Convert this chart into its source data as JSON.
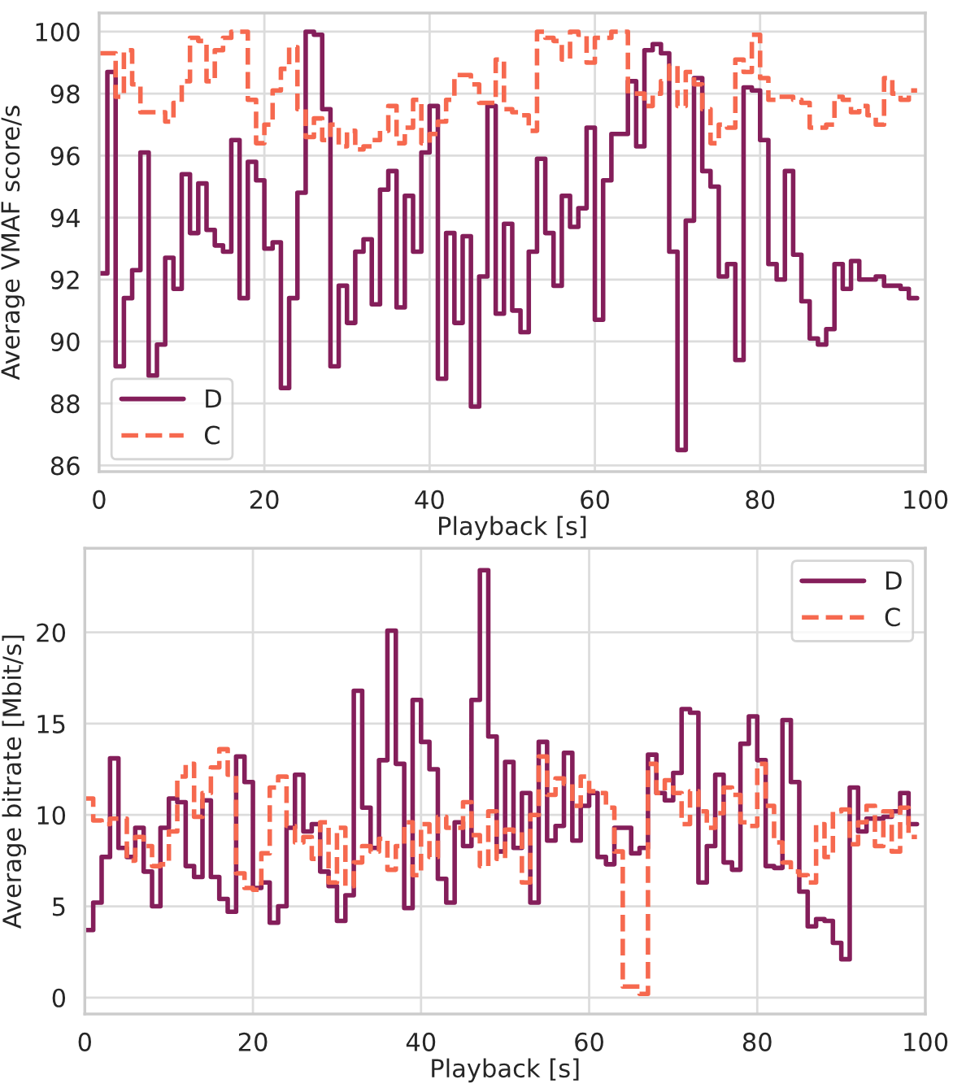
{
  "chart_data": [
    {
      "type": "step",
      "xlabel": "Playback [s]",
      "ylabel": "Average VMAF score/s",
      "xlim": [
        0,
        100
      ],
      "xticks": [
        0,
        20,
        40,
        60,
        80,
        100
      ],
      "ylim": [
        85.8,
        100.6
      ],
      "yticks": [
        86,
        88,
        90,
        92,
        94,
        96,
        98,
        100
      ],
      "grid": true,
      "legend": "bottom left",
      "x": [
        0,
        1,
        2,
        3,
        4,
        5,
        6,
        7,
        8,
        9,
        10,
        11,
        12,
        13,
        14,
        15,
        16,
        17,
        18,
        19,
        20,
        21,
        22,
        23,
        24,
        25,
        26,
        27,
        28,
        29,
        30,
        31,
        32,
        33,
        34,
        35,
        36,
        37,
        38,
        39,
        40,
        41,
        42,
        43,
        44,
        45,
        46,
        47,
        48,
        49,
        50,
        51,
        52,
        53,
        54,
        55,
        56,
        57,
        58,
        59,
        60,
        61,
        62,
        63,
        64,
        65,
        66,
        67,
        68,
        69,
        70,
        71,
        72,
        73,
        74,
        75,
        76,
        77,
        78,
        79,
        80,
        81,
        82,
        83,
        84,
        85,
        86,
        87,
        88,
        89,
        90,
        91,
        92,
        93,
        94,
        95,
        96,
        97,
        98,
        99
      ],
      "series": [
        {
          "name": "D",
          "color": "#841e5a",
          "line_style": "solid",
          "values": [
            92.2,
            98.7,
            89.2,
            91.4,
            92.3,
            96.1,
            88.9,
            89.9,
            92.7,
            91.7,
            95.4,
            93.5,
            95.1,
            93.6,
            93.1,
            92.9,
            96.5,
            91.4,
            95.8,
            95.2,
            93.0,
            93.2,
            88.5,
            91.4,
            94.8,
            100.0,
            99.9,
            97.5,
            89.2,
            91.8,
            90.6,
            92.9,
            93.3,
            91.2,
            94.9,
            95.5,
            91.1,
            94.7,
            92.9,
            96.1,
            97.6,
            88.8,
            93.5,
            90.6,
            93.4,
            87.9,
            92.1,
            97.6,
            90.9,
            93.8,
            91.0,
            90.3,
            92.9,
            95.9,
            93.5,
            91.8,
            94.7,
            93.7,
            94.3,
            96.9,
            90.7,
            95.2,
            96.7,
            96.7,
            98.4,
            96.3,
            99.4,
            99.6,
            99.3,
            92.9,
            86.5,
            93.9,
            98.5,
            95.5,
            95.0,
            92.1,
            92.5,
            89.4,
            98.2,
            98.1,
            96.5,
            92.5,
            92.0,
            95.5,
            92.8,
            91.3,
            90.1,
            89.9,
            90.4,
            92.5,
            91.7,
            92.6,
            92.0,
            92.0,
            92.1,
            91.8,
            91.8,
            91.7,
            91.4,
            91.4
          ]
        },
        {
          "name": "C",
          "color": "#f6694f",
          "line_style": "dashed",
          "values": [
            99.3,
            99.3,
            97.9,
            99.4,
            98.3,
            97.4,
            97.4,
            97.4,
            97.1,
            97.7,
            98.4,
            99.8,
            99.7,
            98.4,
            99.4,
            99.8,
            100.0,
            100.0,
            97.8,
            96.4,
            97.0,
            98.1,
            98.8,
            99.5,
            97.5,
            96.6,
            97.2,
            96.5,
            97.0,
            96.3,
            96.8,
            96.2,
            96.3,
            96.5,
            96.8,
            97.6,
            96.4,
            96.9,
            97.8,
            96.4,
            96.7,
            97.1,
            97.8,
            98.6,
            98.6,
            98.3,
            97.7,
            97.7,
            99.1,
            97.5,
            97.4,
            97.3,
            96.8,
            100.0,
            99.8,
            99.7,
            99.1,
            100.0,
            99.9,
            99.0,
            99.8,
            99.8,
            100.0,
            100.0,
            98.0,
            98.0,
            97.6,
            98.0,
            98.4,
            98.9,
            97.6,
            98.7,
            98.3,
            97.5,
            96.4,
            97.0,
            96.9,
            99.1,
            98.7,
            99.9,
            98.5,
            97.8,
            97.9,
            97.9,
            97.8,
            97.7,
            96.9,
            96.9,
            97.0,
            97.9,
            97.8,
            97.4,
            97.6,
            97.3,
            97.0,
            98.5,
            98.0,
            97.8,
            98.1,
            98.1
          ]
        }
      ]
    },
    {
      "type": "step",
      "xlabel": "Playback [s]",
      "ylabel": "Average bitrate [Mbit/s]",
      "xlim": [
        0,
        100
      ],
      "xticks": [
        0,
        20,
        40,
        60,
        80,
        100
      ],
      "ylim": [
        -0.9,
        24.6
      ],
      "yticks": [
        0,
        5,
        10,
        15,
        20
      ],
      "grid": true,
      "legend": "top right",
      "x": [
        0,
        1,
        2,
        3,
        4,
        5,
        6,
        7,
        8,
        9,
        10,
        11,
        12,
        13,
        14,
        15,
        16,
        17,
        18,
        19,
        20,
        21,
        22,
        23,
        24,
        25,
        26,
        27,
        28,
        29,
        30,
        31,
        32,
        33,
        34,
        35,
        36,
        37,
        38,
        39,
        40,
        41,
        42,
        43,
        44,
        45,
        46,
        47,
        48,
        49,
        50,
        51,
        52,
        53,
        54,
        55,
        56,
        57,
        58,
        59,
        60,
        61,
        62,
        63,
        64,
        65,
        66,
        67,
        68,
        69,
        70,
        71,
        72,
        73,
        74,
        75,
        76,
        77,
        78,
        79,
        80,
        81,
        82,
        83,
        84,
        85,
        86,
        87,
        88,
        89,
        90,
        91,
        92,
        93,
        94,
        95,
        96,
        97,
        98,
        99
      ],
      "series": [
        {
          "name": "D",
          "color": "#841e5a",
          "line_style": "solid",
          "values": [
            3.7,
            5.2,
            7.7,
            13.1,
            8.2,
            7.7,
            9.3,
            6.9,
            5.0,
            9.3,
            10.9,
            10.7,
            7.2,
            6.6,
            10.8,
            6.6,
            5.4,
            4.7,
            13.2,
            11.8,
            6.0,
            6.3,
            4.1,
            5.0,
            9.3,
            12.2,
            9.1,
            9.5,
            6.9,
            6.1,
            4.2,
            5.6,
            16.8,
            10.4,
            8.2,
            13.0,
            20.1,
            12.8,
            4.9,
            16.3,
            14.0,
            12.5,
            6.5,
            5.2,
            9.6,
            8.3,
            16.3,
            23.4,
            14.3,
            8.0,
            12.9,
            8.2,
            11.2,
            5.2,
            14.0,
            8.6,
            9.4,
            13.4,
            8.6,
            10.5,
            11.2,
            7.7,
            7.3,
            9.3,
            9.3,
            7.9,
            8.2,
            13.3,
            11.2,
            10.8,
            12.3,
            15.8,
            15.6,
            6.3,
            8.3,
            12.2,
            7.4,
            7.0,
            13.9,
            15.4,
            13.0,
            7.2,
            7.1,
            15.2,
            11.8,
            5.8,
            3.9,
            4.3,
            4.2,
            3.0,
            2.1,
            11.5,
            9.1,
            9.8,
            9.8,
            9.9,
            10.2,
            11.2,
            9.5,
            9.5
          ]
        },
        {
          "name": "C",
          "color": "#f6694f",
          "line_style": "dashed",
          "values": [
            10.9,
            9.7,
            9.5,
            9.8,
            9.8,
            7.5,
            8.8,
            8.3,
            7.2,
            7.3,
            9.1,
            12.1,
            12.8,
            9.9,
            11.2,
            12.6,
            13.6,
            12.2,
            6.8,
            6.0,
            5.9,
            7.9,
            11.5,
            12.1,
            9.4,
            8.5,
            8.8,
            7.6,
            9.6,
            6.3,
            9.3,
            6.1,
            7.4,
            8.3,
            8.0,
            8.7,
            7.0,
            8.3,
            9.6,
            6.7,
            9.5,
            7.7,
            9.9,
            9.3,
            9.3,
            10.7,
            8.9,
            7.2,
            10.2,
            7.6,
            9.2,
            9.1,
            6.3,
            10.0,
            13.2,
            11.1,
            12.0,
            11.7,
            10.5,
            12.1,
            11.3,
            11.2,
            10.4,
            8.0,
            0.6,
            0.6,
            0.2,
            12.8,
            11.2,
            11.9,
            11.2,
            9.5,
            11.3,
            10.2,
            9.3,
            10.1,
            11.5,
            11.1,
            9.6,
            9.4,
            12.8,
            10.5,
            8.5,
            7.4,
            6.9,
            6.7,
            6.3,
            9.5,
            7.7,
            10.2,
            10.3,
            8.4,
            9.6,
            10.5,
            8.3,
            10.2,
            8.0,
            10.4,
            8.8,
            8.8
          ]
        }
      ]
    }
  ]
}
